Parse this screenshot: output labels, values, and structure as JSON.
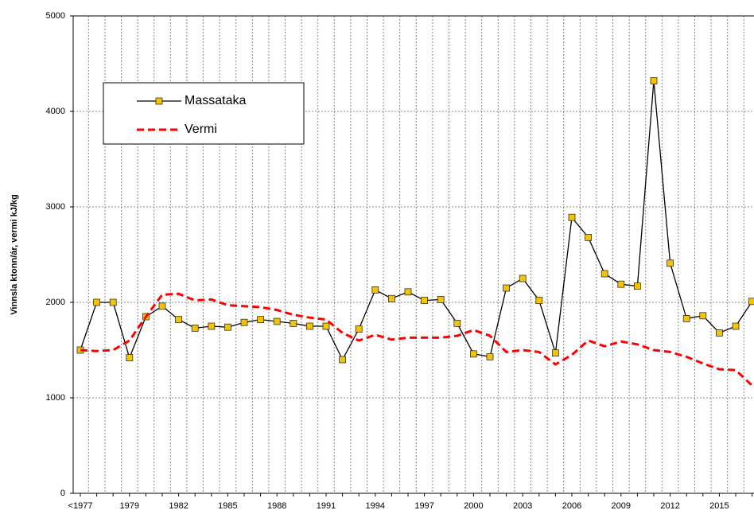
{
  "chart_data": {
    "type": "line",
    "ylabel": "Vinnsla ktonn/ár, vermi kJ/kg",
    "categories": [
      "<1977",
      null,
      null,
      "1979",
      null,
      null,
      "1982",
      null,
      null,
      "1985",
      null,
      null,
      "1988",
      null,
      null,
      "1991",
      null,
      null,
      "1994",
      null,
      null,
      "1997",
      null,
      null,
      "2000",
      null,
      null,
      "2003",
      null,
      null,
      "2006",
      null,
      null,
      "2009",
      null,
      null,
      "2012",
      null,
      null,
      "2015",
      null,
      null
    ],
    "series": [
      {
        "name": "Massataka",
        "color": "#000000",
        "marker_color": "#f5c400",
        "values": [
          1500,
          2000,
          2000,
          1420,
          1850,
          1960,
          1820,
          1730,
          1750,
          1740,
          1790,
          1820,
          1800,
          1780,
          1750,
          1750,
          1400,
          1720,
          2130,
          2040,
          2110,
          2020,
          2030,
          1780,
          1460,
          1430,
          2150,
          2250,
          2020,
          1470,
          2890,
          2680,
          2300,
          2190,
          2170,
          4320,
          2410,
          1830,
          1860,
          1680,
          1750,
          2010
        ]
      },
      {
        "name": "Vermi",
        "color": "#ff0000",
        "values": [
          1500,
          1490,
          1500,
          1600,
          1850,
          2080,
          2090,
          2020,
          2030,
          1970,
          1960,
          1950,
          1920,
          1870,
          1840,
          1820,
          1680,
          1600,
          1660,
          1610,
          1630,
          1630,
          1630,
          1650,
          1710,
          1650,
          1480,
          1500,
          1480,
          1350,
          1450,
          1600,
          1540,
          1590,
          1560,
          1500,
          1480,
          1430,
          1360,
          1300,
          1290,
          1130
        ]
      }
    ],
    "ylim": [
      0,
      5000
    ],
    "yticks": [
      0,
      1000,
      2000,
      3000,
      4000,
      5000
    ],
    "grid": true,
    "legend": "upper left"
  }
}
